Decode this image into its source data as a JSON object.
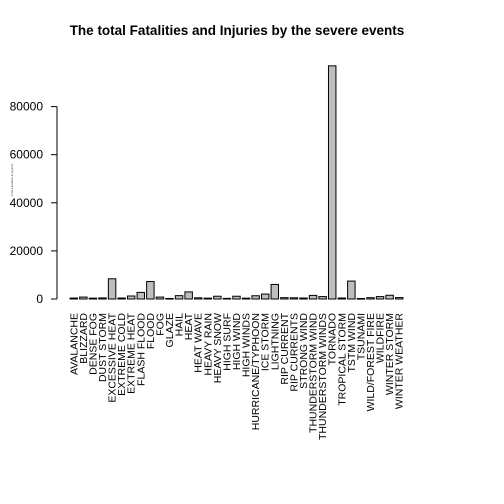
{
  "chart_data": {
    "type": "bar",
    "title": "The total Fatalities and Injuries by the severe events",
    "ylabel": "Total Fatalities & Injuries",
    "xlabel": "",
    "ylim": [
      0,
      100000
    ],
    "yticks": [
      0,
      20000,
      40000,
      60000,
      80000
    ],
    "bar_color": "#bebebe",
    "categories": [
      "AVALANCHE",
      "BLIZZARD",
      "DENSE FOG",
      "DUST STORM",
      "EXCESSIVE HEAT",
      "EXTREME COLD",
      "EXTREME HEAT",
      "FLASH FLOOD",
      "FLOOD",
      "FOG",
      "GLAZE",
      "HAIL",
      "HEAT",
      "HEAT WAVE",
      "HEAVY RAIN",
      "HEAVY SNOW",
      "HIGH SURF",
      "HIGH WIND",
      "HIGH WINDS",
      "HURRICANE/TYPHOON",
      "ICE STORM",
      "LIGHTNING",
      "RIP CURRENT",
      "RIP CURRENTS",
      "STRONG WIND",
      "THUNDERSTORM WIND",
      "THUNDERSTORM WINDS",
      "TORNADO",
      "TROPICAL STORM",
      "TSTM WIND",
      "TSUNAMI",
      "WILD/FOREST FIRE",
      "WILDFIRE",
      "WINTER STORM",
      "WINTER WEATHER"
    ],
    "values": [
      400,
      800,
      350,
      450,
      8400,
      400,
      1250,
      2750,
      7250,
      800,
      220,
      1400,
      2950,
      500,
      350,
      1150,
      250,
      1150,
      350,
      1350,
      2050,
      6050,
      550,
      500,
      400,
      1500,
      1000,
      96950,
      400,
      7450,
      200,
      550,
      1000,
      1550,
      600
    ]
  }
}
